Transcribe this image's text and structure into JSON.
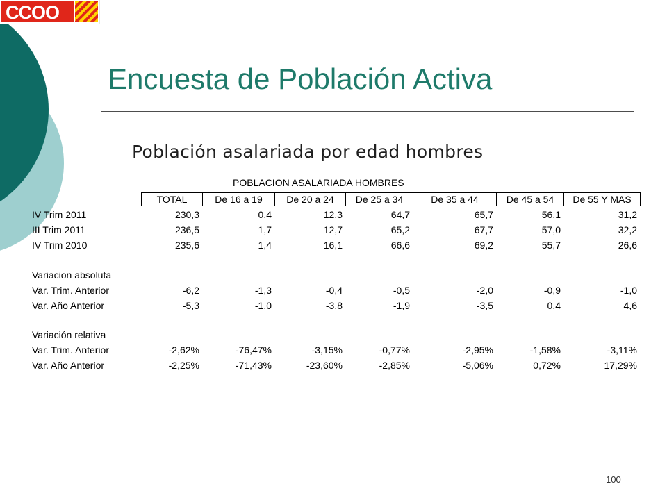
{
  "logo": {
    "text": "CCOO"
  },
  "slide": {
    "title": "Encuesta de Población Activa",
    "bullet_marker": "",
    "subtitle": "Población asalariada por edad hombres",
    "page_number": "100"
  },
  "table": {
    "caption": "POBLACION ASALARIADA HOMBRES",
    "columns": [
      "TOTAL",
      "De 16 a 19",
      "De 20 a 24",
      "De 25 a 34",
      "De 35 a 44",
      "De 45 a 54",
      "De 55 Y MAS"
    ],
    "rows": [
      {
        "label": "IV Trim 2011",
        "values": [
          "230,3",
          "0,4",
          "12,3",
          "64,7",
          "65,7",
          "56,1",
          "31,2"
        ]
      },
      {
        "label": "III Trim 2011",
        "values": [
          "236,5",
          "1,7",
          "12,7",
          "65,2",
          "67,7",
          "57,0",
          "32,2"
        ]
      },
      {
        "label": "IV Trim 2010",
        "values": [
          "235,6",
          "1,4",
          "16,1",
          "66,6",
          "69,2",
          "55,7",
          "26,6"
        ]
      },
      {
        "label": "Variacion absoluta",
        "values": []
      },
      {
        "label": "Var. Trim. Anterior",
        "values": [
          "-6,2",
          "-1,3",
          "-0,4",
          "-0,5",
          "-2,0",
          "-0,9",
          "-1,0"
        ]
      },
      {
        "label": "Var. Año Anterior",
        "values": [
          "-5,3",
          "-1,0",
          "-3,8",
          "-1,9",
          "-3,5",
          "0,4",
          "4,6"
        ]
      },
      {
        "label": "Variación relativa",
        "values": []
      },
      {
        "label": "Var. Trim. Anterior",
        "values": [
          "-2,62%",
          "-76,47%",
          "-3,15%",
          "-0,77%",
          "-2,95%",
          "-1,58%",
          "-3,11%"
        ]
      },
      {
        "label": "Var. Año Anterior",
        "values": [
          "-2,25%",
          "-71,43%",
          "-23,60%",
          "-2,85%",
          "-5,06%",
          "0,72%",
          "17,29%"
        ]
      }
    ]
  }
}
